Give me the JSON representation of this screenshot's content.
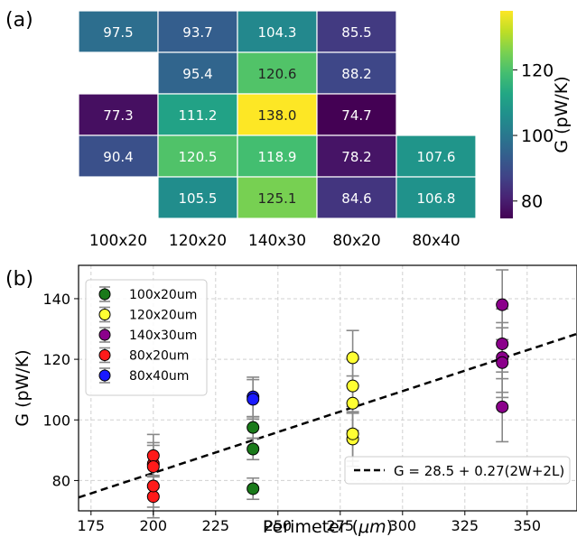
{
  "panel_a_label": "(a)",
  "panel_b_label": "(b)",
  "chart_data": [
    {
      "type": "heatmap",
      "x_categories": [
        "100x20",
        "120x20",
        "140x30",
        "80x20",
        "80x40"
      ],
      "rows": [
        [
          97.5,
          93.7,
          104.3,
          85.5,
          null
        ],
        [
          null,
          95.4,
          120.6,
          88.2,
          null
        ],
        [
          77.3,
          111.2,
          138.0,
          74.7,
          null
        ],
        [
          90.4,
          120.5,
          118.9,
          78.2,
          107.6
        ],
        [
          null,
          105.5,
          125.1,
          84.6,
          106.8
        ]
      ],
      "colormap": "viridis",
      "vmin": 74.7,
      "vmax": 138.0,
      "colorbar": {
        "label": "G (pW/K)",
        "ticks": [
          80,
          100,
          120
        ]
      }
    },
    {
      "type": "scatter",
      "xlabel_prefix": "Perimeter (",
      "xlabel_unit": "μm",
      "xlabel_suffix": ")",
      "ylabel": "G (pW/K)",
      "xlim": [
        170,
        370
      ],
      "ylim": [
        70,
        151
      ],
      "xticks": [
        175,
        200,
        225,
        250,
        275,
        300,
        325,
        350
      ],
      "yticks": [
        80,
        100,
        120,
        140
      ],
      "grid": true,
      "legend_position": "upper-left",
      "series": [
        {
          "name": "100x20um",
          "color": "#1a7a1a",
          "points": [
            [
              240,
              97.5
            ],
            [
              240,
              77.3
            ],
            [
              240,
              90.4
            ]
          ],
          "errorbar": 3.5
        },
        {
          "name": "120x20um",
          "color": "#ffff33",
          "points": [
            [
              280,
              93.7
            ],
            [
              280,
              95.4
            ],
            [
              280,
              111.2
            ],
            [
              280,
              120.5
            ],
            [
              280,
              105.5
            ]
          ],
          "errorbar": 9.0
        },
        {
          "name": "140x30um",
          "color": "#8b008b",
          "points": [
            [
              340,
              104.3
            ],
            [
              340,
              120.6
            ],
            [
              340,
              138.0
            ],
            [
              340,
              118.9
            ],
            [
              340,
              125.1
            ]
          ],
          "errorbar": 11.5
        },
        {
          "name": "80x20um",
          "color": "#ff1a1a",
          "points": [
            [
              200,
              85.5
            ],
            [
              200,
              88.2
            ],
            [
              200,
              74.7
            ],
            [
              200,
              78.2
            ],
            [
              200,
              84.6
            ]
          ],
          "errorbar": 7.0
        },
        {
          "name": "80x40um",
          "color": "#1a1aff",
          "points": [
            [
              240,
              107.6
            ],
            [
              240,
              106.8
            ]
          ],
          "errorbar": 6.5
        }
      ],
      "fit": {
        "label": "G = 28.5 + 0.27(2W+2L)",
        "intercept": 28.5,
        "slope": 0.27,
        "color": "#000000",
        "legend_position": "lower-right"
      }
    }
  ]
}
